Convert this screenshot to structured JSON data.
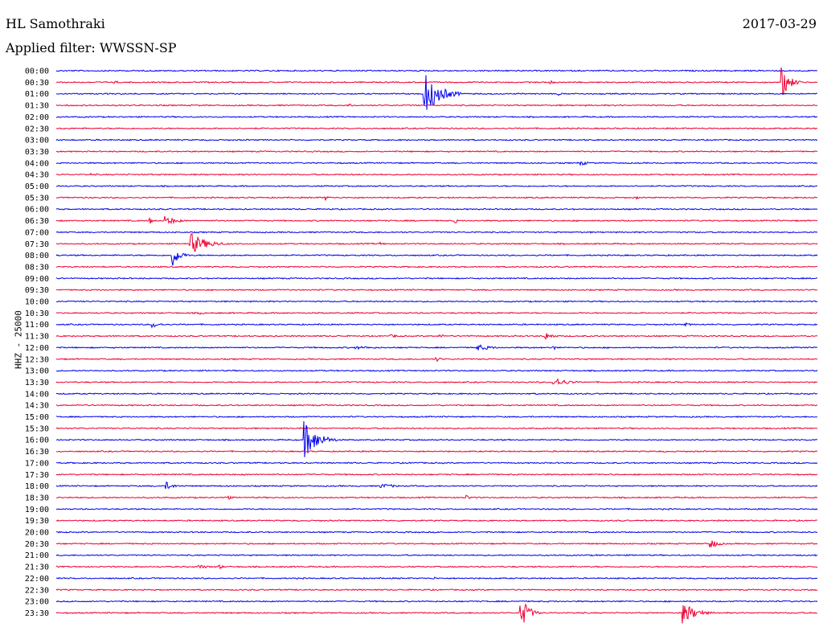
{
  "header": {
    "station": "HL Samothraki",
    "date": "2017-03-29",
    "filter": "Applied filter: WWSSN-SP"
  },
  "colors": {
    "blue": "#0000ee",
    "red": "#ee0033"
  },
  "chart_data": {
    "type": "line",
    "ylabel": "HHZ - 25000",
    "row_labels": [
      "00:00",
      "00:30",
      "01:00",
      "01:30",
      "02:00",
      "02:30",
      "03:00",
      "03:30",
      "04:00",
      "04:30",
      "05:00",
      "05:30",
      "06:00",
      "06:30",
      "07:00",
      "07:30",
      "08:00",
      "08:30",
      "09:00",
      "09:30",
      "10:00",
      "10:30",
      "11:00",
      "11:30",
      "12:00",
      "12:30",
      "13:00",
      "13:30",
      "14:00",
      "14:30",
      "15:00",
      "15:30",
      "16:00",
      "16:30",
      "17:00",
      "17:30",
      "18:00",
      "18:30",
      "19:00",
      "19:30",
      "20:00",
      "20:30",
      "21:00",
      "21:30",
      "22:00",
      "22:30",
      "23:00",
      "23:30"
    ],
    "row_colors": [
      "blue",
      "red"
    ],
    "time_span_minutes": 30,
    "events": [
      {
        "row": 1,
        "minute": 28.6,
        "amp": 20,
        "dur": 0.8
      },
      {
        "row": 1,
        "minute": 2.3,
        "amp": 2,
        "dur": 0.6
      },
      {
        "row": 1,
        "minute": 19.5,
        "amp": 2,
        "dur": 0.8
      },
      {
        "row": 2,
        "minute": 14.5,
        "amp": 28,
        "dur": 1.5
      },
      {
        "row": 2,
        "minute": 19.8,
        "amp": 2,
        "dur": 0.3
      },
      {
        "row": 3,
        "minute": 11.6,
        "amp": 3,
        "dur": 0.2
      },
      {
        "row": 8,
        "minute": 20.7,
        "amp": 3,
        "dur": 0.8
      },
      {
        "row": 9,
        "minute": 1.4,
        "amp": 2,
        "dur": 0.2
      },
      {
        "row": 11,
        "minute": 10.6,
        "amp": 4,
        "dur": 0.3
      },
      {
        "row": 11,
        "minute": 22.9,
        "amp": 2,
        "dur": 0.3
      },
      {
        "row": 13,
        "minute": 4.3,
        "amp": 6,
        "dur": 1.2
      },
      {
        "row": 13,
        "minute": 3.7,
        "amp": 4,
        "dur": 0.3
      },
      {
        "row": 13,
        "minute": 15.7,
        "amp": 5,
        "dur": 0.2
      },
      {
        "row": 15,
        "minute": 5.3,
        "amp": 14,
        "dur": 1.6
      },
      {
        "row": 15,
        "minute": 12.8,
        "amp": 2,
        "dur": 0.4
      },
      {
        "row": 16,
        "minute": 4.6,
        "amp": 14,
        "dur": 0.7
      },
      {
        "row": 21,
        "minute": 5.7,
        "amp": 2,
        "dur": 0.5
      },
      {
        "row": 22,
        "minute": 3.8,
        "amp": 4,
        "dur": 0.8
      },
      {
        "row": 22,
        "minute": 24.8,
        "amp": 2,
        "dur": 0.9
      },
      {
        "row": 23,
        "minute": 13.2,
        "amp": 2,
        "dur": 1.3
      },
      {
        "row": 23,
        "minute": 15.1,
        "amp": 3,
        "dur": 0.6
      },
      {
        "row": 23,
        "minute": 19.3,
        "amp": 5,
        "dur": 0.8
      },
      {
        "row": 24,
        "minute": 11.8,
        "amp": 2,
        "dur": 2.5
      },
      {
        "row": 24,
        "minute": 16.6,
        "amp": 4,
        "dur": 1.6
      },
      {
        "row": 24,
        "minute": 19.6,
        "amp": 4,
        "dur": 0.2
      },
      {
        "row": 25,
        "minute": 15.0,
        "amp": 3,
        "dur": 0.5
      },
      {
        "row": 25,
        "minute": 19.8,
        "amp": 2,
        "dur": 0.4
      },
      {
        "row": 27,
        "minute": 19.6,
        "amp": 6,
        "dur": 1.5
      },
      {
        "row": 32,
        "minute": 9.8,
        "amp": 24,
        "dur": 1.3
      },
      {
        "row": 35,
        "minute": 7.4,
        "amp": 2,
        "dur": 0.2
      },
      {
        "row": 36,
        "minute": 4.3,
        "amp": 6,
        "dur": 0.8
      },
      {
        "row": 36,
        "minute": 12.8,
        "amp": 3,
        "dur": 1.8
      },
      {
        "row": 37,
        "minute": 6.7,
        "amp": 4,
        "dur": 0.5
      },
      {
        "row": 37,
        "minute": 16.2,
        "amp": 3,
        "dur": 0.4
      },
      {
        "row": 41,
        "minute": 25.8,
        "amp": 6,
        "dur": 0.8
      },
      {
        "row": 43,
        "minute": 5.6,
        "amp": 3,
        "dur": 1.0
      },
      {
        "row": 43,
        "minute": 6.4,
        "amp": 5,
        "dur": 0.3
      },
      {
        "row": 44,
        "minute": 14.9,
        "amp": 2,
        "dur": 0.2
      },
      {
        "row": 47,
        "minute": 18.3,
        "amp": 22,
        "dur": 0.8
      },
      {
        "row": 47,
        "minute": 24.7,
        "amp": 14,
        "dur": 1.3
      }
    ]
  }
}
